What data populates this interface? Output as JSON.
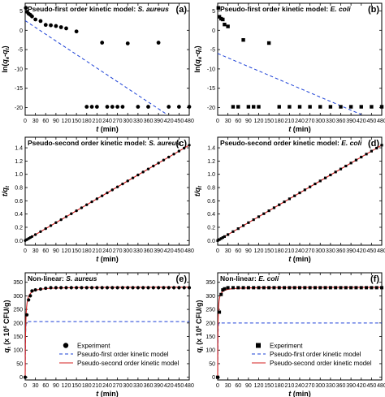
{
  "colors": {
    "experiment": "#000000",
    "pfo": "#1a3fd6",
    "pso": "#d42020"
  },
  "chart_data": [
    {
      "type": "scatter",
      "panel": "(a)",
      "title_prefix": "Pseudo-first order kinetic model: ",
      "title_italic": "S. aureus",
      "xlabel": "t (min)",
      "ylabel": "ln(qe-qt)",
      "xlim": [
        0,
        480
      ],
      "ylim": [
        -22,
        7
      ],
      "xticks": [
        0,
        30,
        60,
        90,
        120,
        150,
        180,
        210,
        240,
        270,
        300,
        330,
        360,
        390,
        420,
        450,
        480
      ],
      "yticks": [
        5,
        0,
        -5,
        -10,
        -15,
        -20
      ],
      "marker": "circle",
      "points": [
        [
          2,
          5.8
        ],
        [
          5,
          4.8
        ],
        [
          10,
          4.3
        ],
        [
          15,
          4.0
        ],
        [
          20,
          3.6
        ],
        [
          30,
          2.8
        ],
        [
          45,
          2.4
        ],
        [
          60,
          1.4
        ],
        [
          75,
          1.3
        ],
        [
          90,
          1.1
        ],
        [
          105,
          0.8
        ],
        [
          120,
          0.5
        ],
        [
          150,
          -0.3
        ],
        [
          180,
          -19.8
        ],
        [
          195,
          -19.8
        ],
        [
          210,
          -19.8
        ],
        [
          225,
          -3.2
        ],
        [
          240,
          -19.8
        ],
        [
          255,
          -19.8
        ],
        [
          270,
          -19.8
        ],
        [
          285,
          -19.8
        ],
        [
          300,
          -3.4
        ],
        [
          330,
          -19.8
        ],
        [
          360,
          -19.8
        ],
        [
          390,
          -3.2
        ],
        [
          420,
          -19.8
        ],
        [
          450,
          -19.8
        ],
        [
          480,
          -19.8
        ]
      ],
      "fit_dashed": [
        [
          0,
          2.5
        ],
        [
          410,
          -21.5
        ]
      ]
    },
    {
      "type": "scatter",
      "panel": "(b)",
      "title_prefix": "Pseudo-first order kinetic model: ",
      "title_italic": "E. coli",
      "xlabel": "t (min)",
      "ylabel": "ln(qe-qt)",
      "xlim": [
        0,
        480
      ],
      "ylim": [
        -22,
        7
      ],
      "xticks": [
        0,
        30,
        60,
        90,
        120,
        150,
        180,
        210,
        240,
        270,
        300,
        330,
        360,
        390,
        420,
        450,
        480
      ],
      "yticks": [
        5,
        0,
        -5,
        -10,
        -15,
        -20
      ],
      "marker": "square",
      "points": [
        [
          2,
          5.8
        ],
        [
          5,
          3.5
        ],
        [
          10,
          3.0
        ],
        [
          15,
          2.8
        ],
        [
          20,
          1.5
        ],
        [
          30,
          1.0
        ],
        [
          45,
          -19.8
        ],
        [
          60,
          -19.8
        ],
        [
          75,
          -2.5
        ],
        [
          90,
          -19.8
        ],
        [
          105,
          -19.8
        ],
        [
          120,
          -19.8
        ],
        [
          150,
          -3.3
        ],
        [
          180,
          -19.8
        ],
        [
          210,
          -19.8
        ],
        [
          240,
          -19.8
        ],
        [
          270,
          -19.8
        ],
        [
          300,
          -19.8
        ],
        [
          330,
          -19.8
        ],
        [
          360,
          -19.8
        ],
        [
          390,
          -19.8
        ],
        [
          420,
          -19.8
        ],
        [
          450,
          -19.8
        ],
        [
          480,
          -19.8
        ]
      ],
      "fit_dashed": [
        [
          0,
          -6.0
        ],
        [
          420,
          -21.8
        ]
      ]
    },
    {
      "type": "line",
      "panel": "(c)",
      "title_prefix": "Pseudo-second order kinetic model: ",
      "title_italic": "S. aureus",
      "xlabel": "t (min)",
      "ylabel": "t/qt",
      "xlim": [
        0,
        480
      ],
      "ylim": [
        -0.07,
        1.56
      ],
      "xticks": [
        0,
        30,
        60,
        90,
        120,
        150,
        180,
        210,
        240,
        270,
        300,
        330,
        360,
        390,
        420,
        450,
        480
      ],
      "yticks": [
        0.0,
        0.2,
        0.4,
        0.6,
        0.8,
        1.0,
        1.2,
        1.4
      ],
      "yticklabels": [
        "0.0",
        "0.2",
        "0.4",
        "0.6",
        "0.8",
        "1.0",
        "1.2",
        "1.4"
      ],
      "marker": "circle",
      "points_x": [
        0,
        5,
        10,
        15,
        20,
        30,
        45,
        60,
        75,
        90,
        105,
        120,
        135,
        150,
        165,
        180,
        195,
        210,
        225,
        240,
        255,
        270,
        285,
        300,
        315,
        330,
        345,
        360,
        375,
        390,
        405,
        420,
        435,
        450,
        465,
        480
      ],
      "slope": 0.003,
      "intercept": 0.0
    },
    {
      "type": "line",
      "panel": "(d)",
      "title_prefix": "Pseudo-second order kinetic model: ",
      "title_italic": "E. coli",
      "xlabel": "t (min)",
      "ylabel": "t/qt",
      "xlim": [
        0,
        480
      ],
      "ylim": [
        -0.07,
        1.56
      ],
      "xticks": [
        0,
        30,
        60,
        90,
        120,
        150,
        180,
        210,
        240,
        270,
        300,
        330,
        360,
        390,
        420,
        450,
        480
      ],
      "yticks": [
        0.0,
        0.2,
        0.4,
        0.6,
        0.8,
        1.0,
        1.2,
        1.4
      ],
      "yticklabels": [
        "0.0",
        "0.2",
        "0.4",
        "0.6",
        "0.8",
        "1.0",
        "1.2",
        "1.4"
      ],
      "marker": "square",
      "points_x": [
        0,
        5,
        10,
        15,
        20,
        30,
        45,
        60,
        75,
        90,
        105,
        120,
        135,
        150,
        165,
        180,
        195,
        210,
        225,
        240,
        255,
        270,
        285,
        300,
        315,
        330,
        345,
        360,
        375,
        390,
        405,
        420,
        435,
        450,
        465,
        480
      ],
      "slope": 0.003,
      "intercept": 0.0
    },
    {
      "type": "line",
      "panel": "(e)",
      "title_prefix": "Non-linear: ",
      "title_italic": "S. aureus",
      "xlabel": "t (min)",
      "ylabel": "qt (x 10^6 CFU/g)",
      "xlim": [
        0,
        480
      ],
      "ylim": [
        -10,
        385
      ],
      "xticks": [
        0,
        30,
        60,
        90,
        120,
        150,
        180,
        210,
        240,
        270,
        300,
        330,
        360,
        390,
        420,
        450,
        480
      ],
      "yticks": [
        0,
        50,
        100,
        150,
        200,
        250,
        300,
        350
      ],
      "marker": "circle",
      "experiment": [
        [
          0,
          0
        ],
        [
          5,
          230
        ],
        [
          10,
          285
        ],
        [
          15,
          300
        ],
        [
          20,
          318
        ],
        [
          30,
          322
        ],
        [
          45,
          325
        ],
        [
          60,
          328
        ],
        [
          75,
          330
        ],
        [
          90,
          330
        ],
        [
          105,
          330
        ],
        [
          120,
          330
        ],
        [
          135,
          330
        ],
        [
          150,
          330
        ],
        [
          165,
          330
        ],
        [
          180,
          330
        ],
        [
          195,
          330
        ],
        [
          210,
          330
        ],
        [
          225,
          330
        ],
        [
          240,
          330
        ],
        [
          255,
          330
        ],
        [
          270,
          330
        ],
        [
          285,
          330
        ],
        [
          300,
          330
        ],
        [
          315,
          330
        ],
        [
          330,
          330
        ],
        [
          345,
          330
        ],
        [
          360,
          330
        ],
        [
          375,
          330
        ],
        [
          390,
          330
        ],
        [
          405,
          330
        ],
        [
          420,
          330
        ],
        [
          435,
          330
        ],
        [
          450,
          330
        ],
        [
          465,
          330
        ],
        [
          480,
          330
        ]
      ],
      "pfo_qe": 205,
      "pfo_k": 1.2,
      "pso_qe": 333,
      "pso_k": 0.0025,
      "legend": [
        "Experiment",
        "Pseudo-first order kinetic model",
        "Pseudo-second order kinetic model"
      ]
    },
    {
      "type": "line",
      "panel": "(f)",
      "title_prefix": "Non-linear: ",
      "title_italic": "E. coli",
      "xlabel": "t (min)",
      "ylabel": "qt (x 10^6 CFU/g)",
      "xlim": [
        0,
        480
      ],
      "ylim": [
        -10,
        385
      ],
      "xticks": [
        0,
        30,
        60,
        90,
        120,
        150,
        180,
        210,
        240,
        270,
        300,
        330,
        360,
        390,
        420,
        450,
        480
      ],
      "yticks": [
        0,
        50,
        100,
        150,
        200,
        250,
        300,
        350
      ],
      "marker": "square",
      "experiment": [
        [
          0,
          0
        ],
        [
          5,
          240
        ],
        [
          10,
          305
        ],
        [
          15,
          322
        ],
        [
          20,
          326
        ],
        [
          30,
          330
        ],
        [
          45,
          330
        ],
        [
          60,
          330
        ],
        [
          75,
          330
        ],
        [
          90,
          330
        ],
        [
          105,
          330
        ],
        [
          120,
          330
        ],
        [
          135,
          330
        ],
        [
          150,
          330
        ],
        [
          165,
          330
        ],
        [
          180,
          330
        ],
        [
          195,
          330
        ],
        [
          210,
          330
        ],
        [
          225,
          330
        ],
        [
          240,
          330
        ],
        [
          255,
          330
        ],
        [
          270,
          330
        ],
        [
          285,
          330
        ],
        [
          300,
          330
        ],
        [
          315,
          330
        ],
        [
          330,
          330
        ],
        [
          345,
          330
        ],
        [
          360,
          330
        ],
        [
          375,
          330
        ],
        [
          390,
          330
        ],
        [
          405,
          330
        ],
        [
          420,
          330
        ],
        [
          435,
          330
        ],
        [
          450,
          330
        ],
        [
          465,
          330
        ],
        [
          480,
          330
        ]
      ],
      "pfo_qe": 200,
      "pfo_k": 1.5,
      "pso_qe": 332,
      "pso_k": 0.004,
      "legend": [
        "Experiment",
        "Pseudo-first order kinetic model",
        "Pseudo-second order kinetic model"
      ]
    }
  ]
}
